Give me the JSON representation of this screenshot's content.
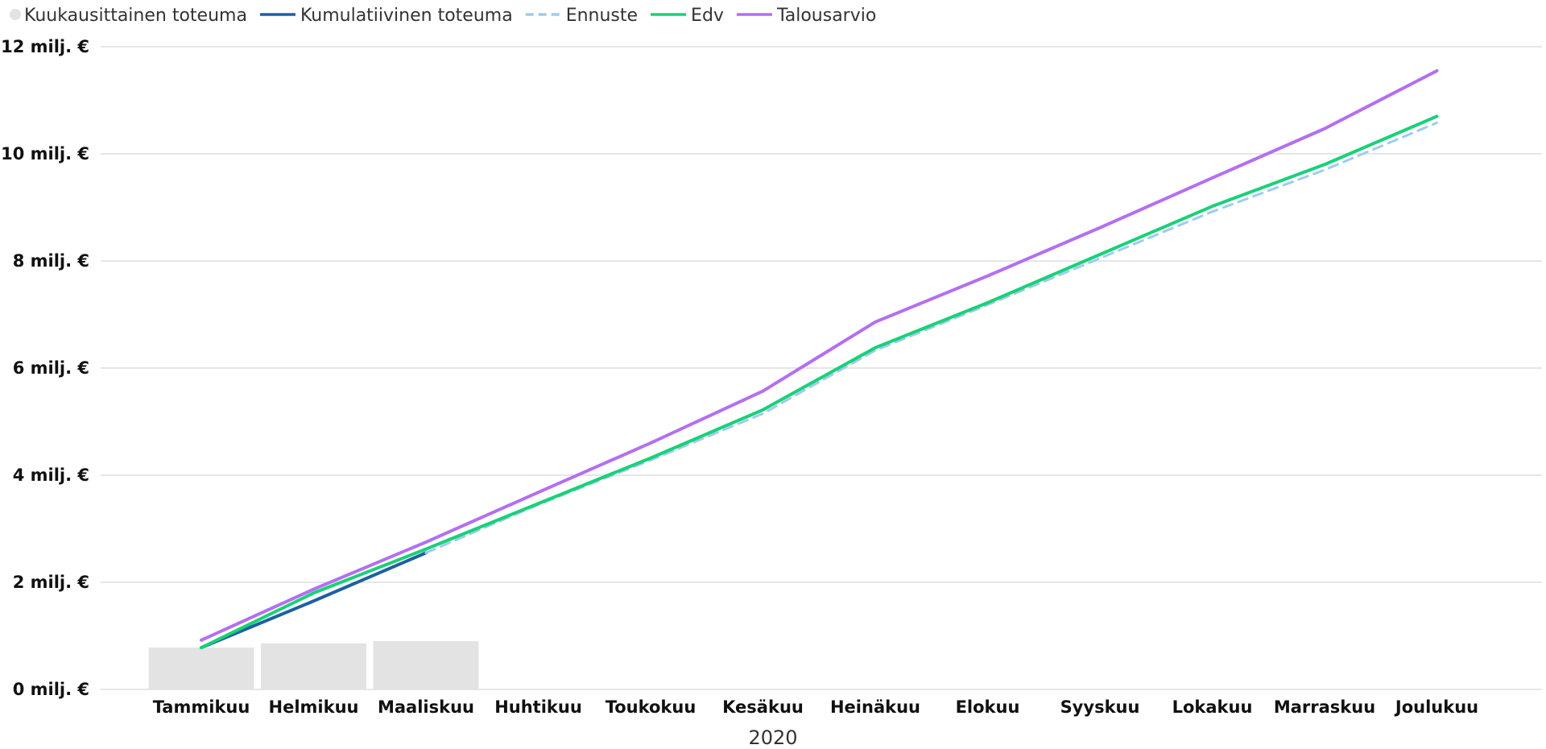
{
  "chart_data": {
    "type": "line",
    "legend_position": "top-left",
    "grid": true,
    "xlabel": "2020",
    "ylabel": "",
    "categories": [
      "Tammikuu",
      "Helmikuu",
      "Maaliskuu",
      "Huhtikuu",
      "Toukokuu",
      "Kesäkuu",
      "Heinäkuu",
      "Elokuu",
      "Syyskuu",
      "Lokakuu",
      "Marraskuu",
      "Joulukuu"
    ],
    "ylim": [
      0,
      12
    ],
    "yticks": [
      {
        "value": 0,
        "label": "0 milj. €"
      },
      {
        "value": 2,
        "label": "2 milj. €"
      },
      {
        "value": 4,
        "label": "4 milj. €"
      },
      {
        "value": 6,
        "label": "6 milj. €"
      },
      {
        "value": 8,
        "label": "8 milj. €"
      },
      {
        "value": 10,
        "label": "10 milj. €"
      },
      {
        "value": 12,
        "label": "12 milj. €"
      }
    ],
    "series": [
      {
        "name": "Kuukausittainen toteuma",
        "kind": "bar",
        "color": "#e3e3e3",
        "values": [
          0.78,
          0.86,
          0.9,
          null,
          null,
          null,
          null,
          null,
          null,
          null,
          null,
          null
        ]
      },
      {
        "name": "Kumulatiivinen toteuma",
        "kind": "line",
        "color": "#1f5fa0",
        "dashed": false,
        "values": [
          0.78,
          1.65,
          2.55,
          null,
          null,
          null,
          null,
          null,
          null,
          null,
          null,
          null
        ]
      },
      {
        "name": "Ennuste",
        "kind": "line",
        "color": "#9fcbf0",
        "dashed": true,
        "values": [
          null,
          null,
          2.55,
          3.45,
          4.28,
          5.15,
          6.33,
          7.18,
          8.05,
          8.92,
          9.7,
          10.58
        ]
      },
      {
        "name": "Edv",
        "kind": "line",
        "color": "#19d178",
        "dashed": false,
        "values": [
          0.78,
          1.8,
          2.62,
          3.47,
          4.32,
          5.22,
          6.38,
          7.22,
          8.12,
          9.02,
          9.8,
          10.7
        ]
      },
      {
        "name": "Talousarvio",
        "kind": "line",
        "color": "#b36ff0",
        "dashed": false,
        "values": [
          0.92,
          1.87,
          2.75,
          3.68,
          4.6,
          5.57,
          6.86,
          7.72,
          8.62,
          9.55,
          10.47,
          11.55
        ]
      }
    ]
  }
}
